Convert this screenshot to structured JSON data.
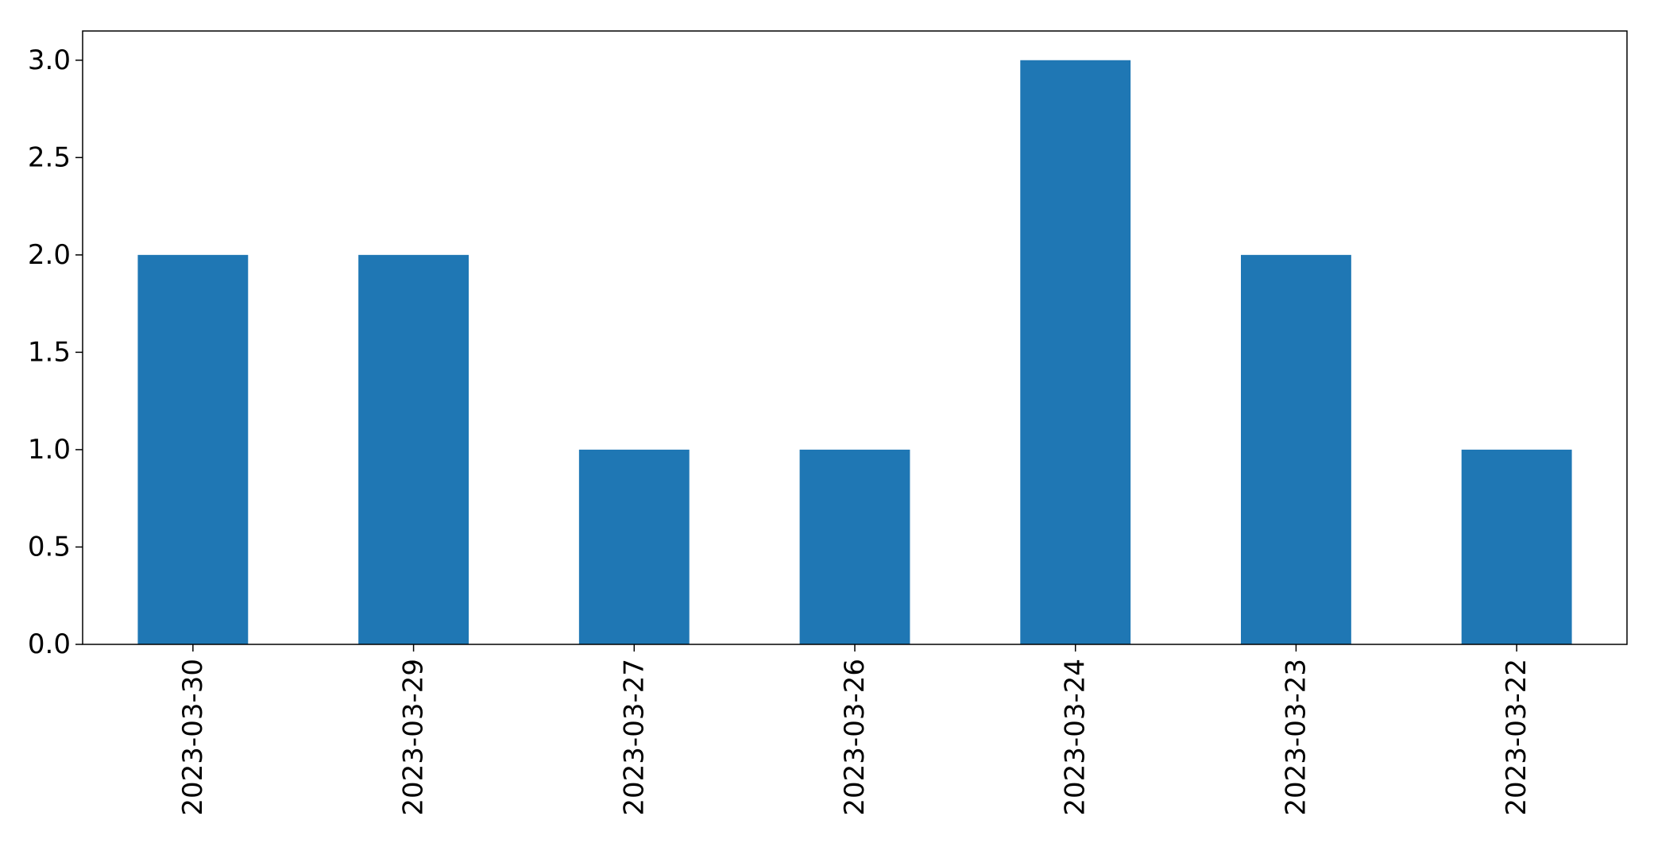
{
  "chart_data": {
    "type": "bar",
    "categories": [
      "2023-03-30",
      "2023-03-29",
      "2023-03-27",
      "2023-03-26",
      "2023-03-24",
      "2023-03-23",
      "2023-03-22"
    ],
    "values": [
      2,
      2,
      1,
      1,
      3,
      2,
      1
    ],
    "ylim": [
      0,
      3.15
    ],
    "yticks": [
      0.0,
      0.5,
      1.0,
      1.5,
      2.0,
      2.5,
      3.0
    ],
    "ytick_labels": [
      "0.0",
      "0.5",
      "1.0",
      "1.5",
      "2.0",
      "2.5",
      "3.0"
    ],
    "bar_color": "#1f77b4",
    "grid": false,
    "legend": false
  }
}
